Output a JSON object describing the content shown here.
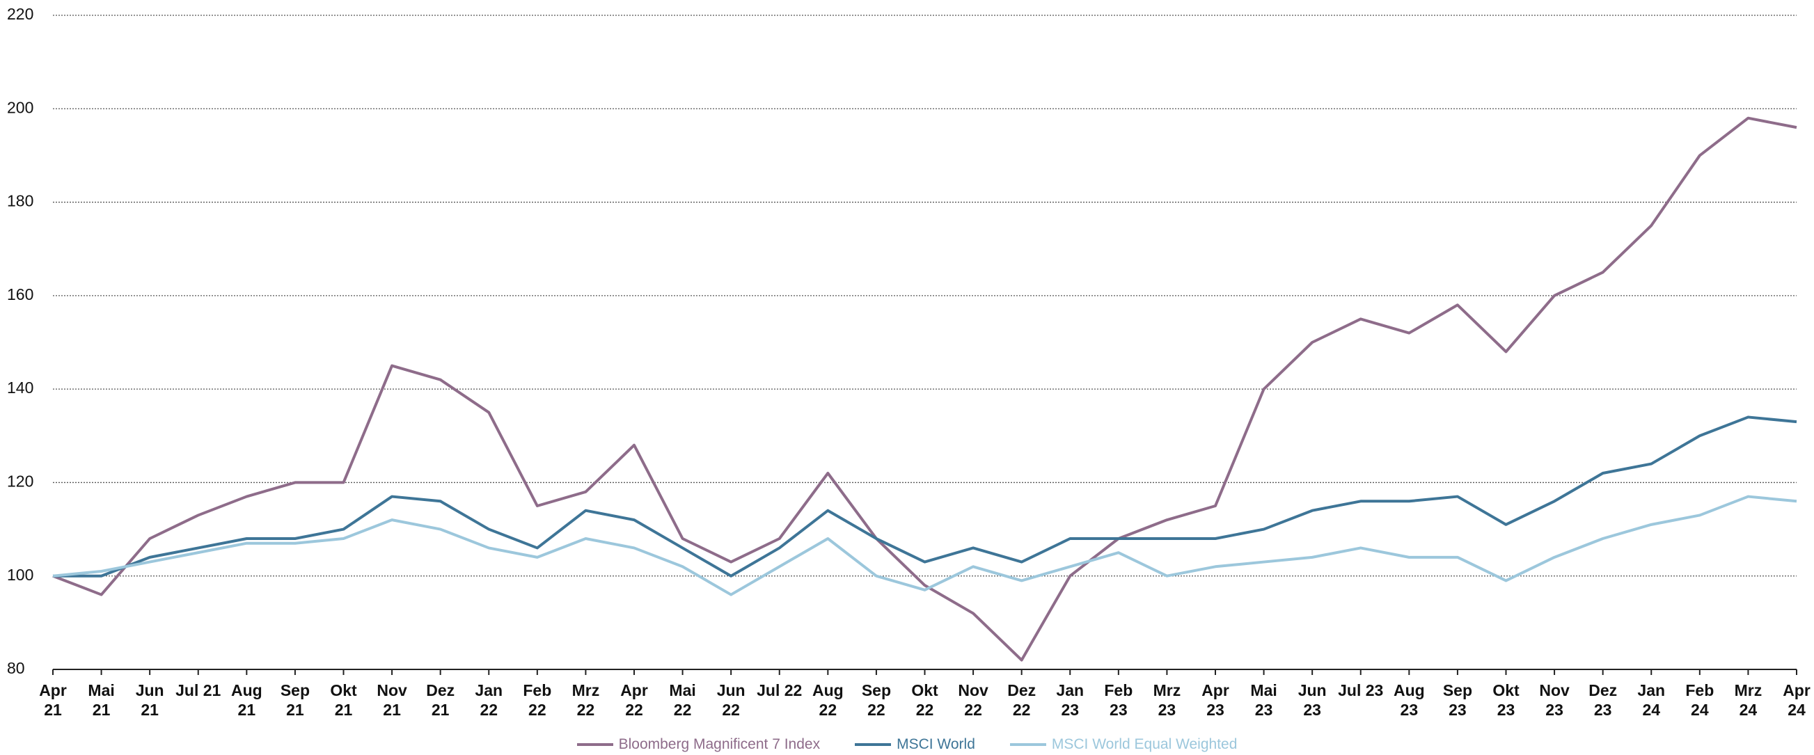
{
  "chart_data": {
    "type": "line",
    "categories": [
      "Apr\n21",
      "Mai\n21",
      "Jun\n21",
      "Jul 21",
      "Aug\n21",
      "Sep\n21",
      "Okt\n21",
      "Nov\n21",
      "Dez\n21",
      "Jan\n22",
      "Feb\n22",
      "Mrz\n22",
      "Apr\n22",
      "Mai\n22",
      "Jun\n22",
      "Jul 22",
      "Aug\n22",
      "Sep\n22",
      "Okt\n22",
      "Nov\n22",
      "Dez\n22",
      "Jan\n23",
      "Feb\n23",
      "Mrz\n23",
      "Apr\n23",
      "Mai\n23",
      "Jun\n23",
      "Jul 23",
      "Aug\n23",
      "Sep\n23",
      "Okt\n23",
      "Nov\n23",
      "Dez\n23",
      "Jan\n24",
      "Feb\n24",
      "Mrz\n24",
      "Apr\n24"
    ],
    "series": [
      {
        "name": "Bloomberg Magnificent 7 Index",
        "color": "#8e6c8a",
        "values": [
          100,
          96,
          108,
          113,
          117,
          120,
          120,
          145,
          142,
          135,
          115,
          118,
          128,
          108,
          103,
          108,
          122,
          108,
          98,
          92,
          82,
          100,
          108,
          112,
          115,
          140,
          150,
          155,
          152,
          158,
          148,
          160,
          165,
          175,
          190,
          198,
          196
        ]
      },
      {
        "name": "MSCI World",
        "color": "#3e7597",
        "values": [
          100,
          100,
          104,
          106,
          108,
          108,
          110,
          117,
          116,
          110,
          106,
          114,
          112,
          106,
          100,
          106,
          114,
          108,
          103,
          106,
          103,
          108,
          108,
          108,
          108,
          110,
          114,
          116,
          116,
          117,
          111,
          116,
          122,
          124,
          130,
          134,
          133
        ]
      },
      {
        "name": "MSCI World Equal Weighted",
        "color": "#9cc7dc",
        "values": [
          100,
          101,
          103,
          105,
          107,
          107,
          108,
          112,
          110,
          106,
          104,
          108,
          106,
          102,
          96,
          102,
          108,
          100,
          97,
          102,
          99,
          102,
          105,
          100,
          102,
          103,
          104,
          106,
          104,
          104,
          99,
          104,
          108,
          111,
          113,
          117,
          116
        ]
      }
    ],
    "ylim": [
      80,
      220
    ],
    "yticks": [
      80,
      100,
      120,
      140,
      160,
      180,
      200,
      220
    ],
    "grid": true,
    "legend": "bottom"
  }
}
